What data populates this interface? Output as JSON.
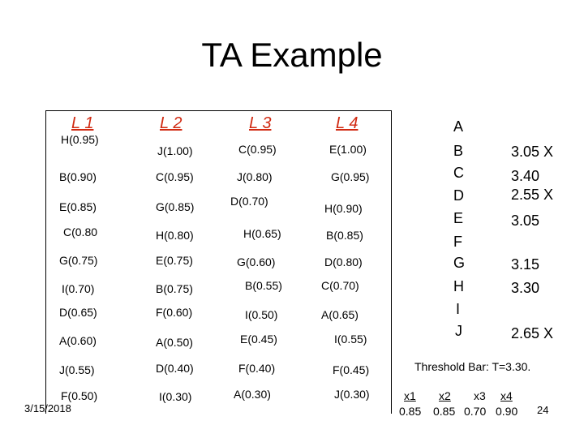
{
  "title": "TA Example",
  "lists": {
    "headers": [
      "L 1",
      "L 2",
      "L 3",
      "L 4"
    ],
    "columns": [
      [
        "H(0.95)",
        "B(0.90)",
        "E(0.85)",
        "C(0.80",
        "G(0.75)",
        "I(0.70)",
        "D(0.65)",
        "A(0.60)",
        "J(0.55)",
        "F(0.50)"
      ],
      [
        "J(1.00)",
        "C(0.95)",
        "G(0.85)",
        "H(0.80)",
        "E(0.75)",
        "B(0.75)",
        "F(0.60)",
        "A(0.50)",
        "D(0.40)",
        "I(0.30)"
      ],
      [
        "C(0.95)",
        "J(0.80)",
        "D(0.70)",
        "H(0.65)",
        "G(0.60)",
        "B(0.55)",
        "I(0.50)",
        "E(0.45)",
        "F(0.40)",
        "A(0.30)"
      ],
      [
        "E(1.00)",
        "G(0.95)",
        "H(0.90)",
        "B(0.85)",
        "D(0.80)",
        "C(0.70)",
        "A(0.65)",
        "I(0.55)",
        "F(0.45)",
        "J(0.30)"
      ]
    ]
  },
  "scores": {
    "letters": [
      "A",
      "B",
      "C",
      "D",
      "E",
      "F",
      "G",
      "H",
      "I",
      "J"
    ],
    "values": [
      "",
      "3.05 X",
      "3.40",
      "2.55 X",
      "3.05",
      "",
      "3.15",
      "3.30",
      "",
      "2.65 X"
    ]
  },
  "threshold": "Threshold Bar: T=3.30.",
  "x_labels": [
    "x1",
    "x2",
    "x3",
    "x4"
  ],
  "x_values": [
    "0.85",
    "0.85",
    "0.70",
    "0.90"
  ],
  "date": "3/15/2018",
  "page_number": "24",
  "colors": {
    "header": "#d12a12",
    "text": "#000000"
  }
}
